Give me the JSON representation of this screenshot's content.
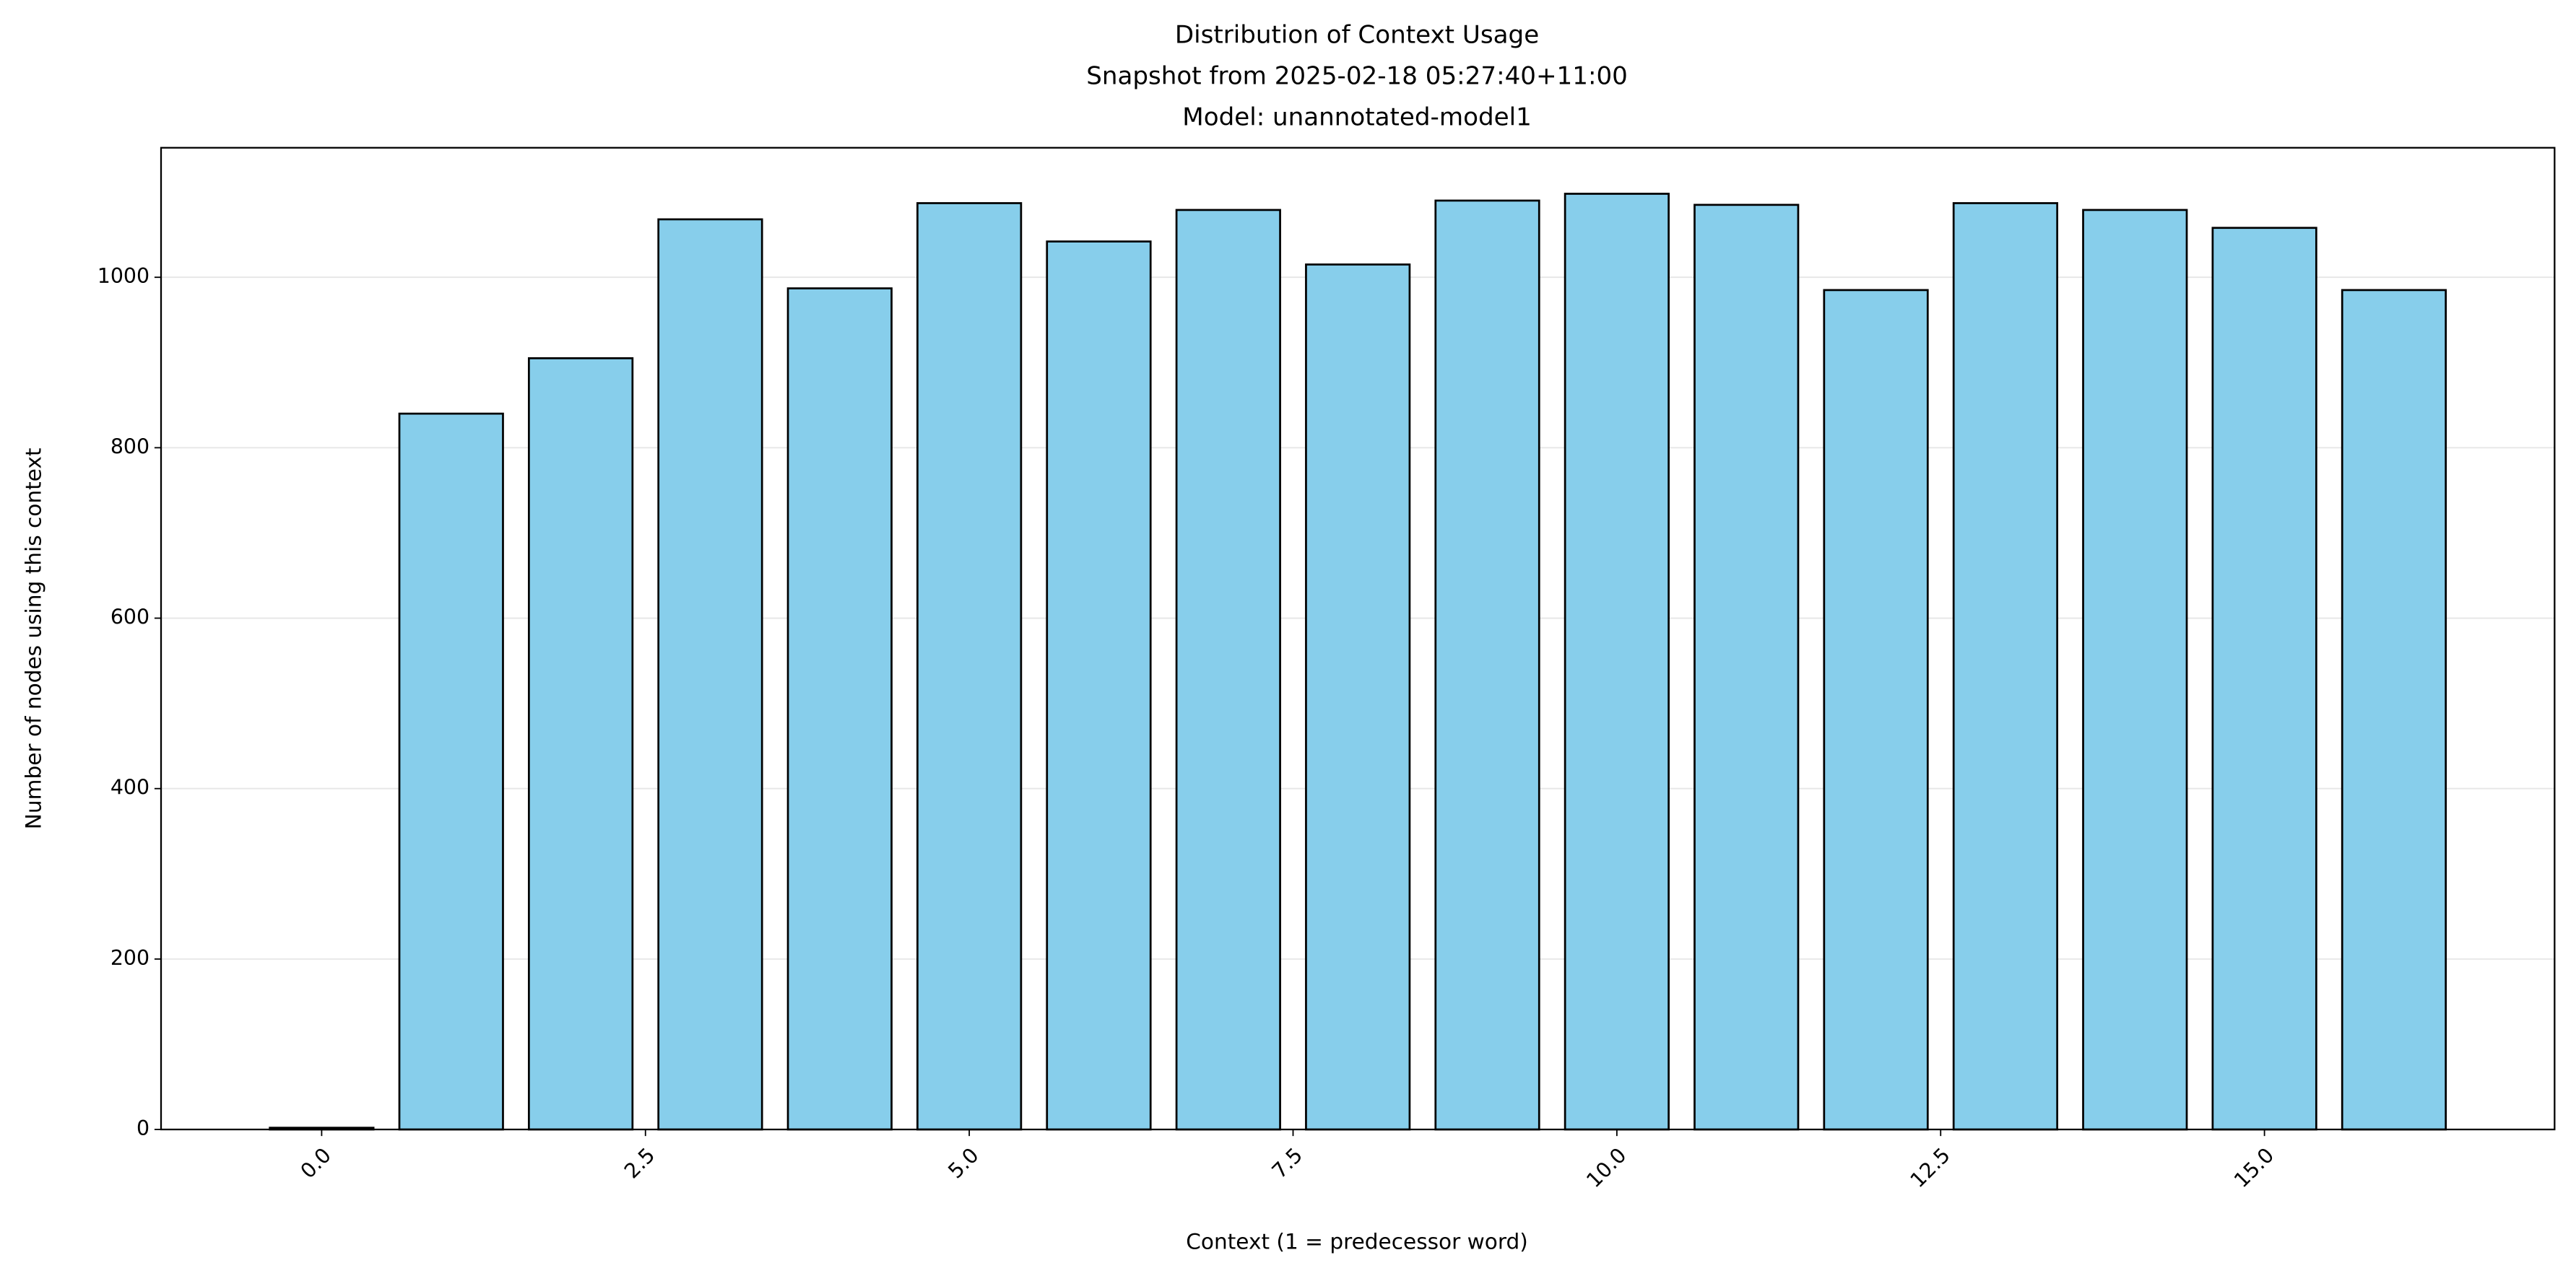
{
  "chart_data": {
    "type": "bar",
    "title": [
      "Distribution of Context Usage",
      "Snapshot from 2025-02-18 05:27:40+11:00",
      "Model: unannotated-model1"
    ],
    "xlabel": "Context (1 = predecessor word)",
    "ylabel": "Number of nodes using this context",
    "x": [
      0,
      1,
      2,
      3,
      4,
      5,
      6,
      7,
      8,
      9,
      10,
      11,
      12,
      13,
      14,
      15,
      16
    ],
    "values": [
      2,
      840,
      905,
      1068,
      987,
      1087,
      1042,
      1079,
      1015,
      1090,
      1098,
      1085,
      985,
      1087,
      1079,
      1058,
      985
    ],
    "color": "#87ceeb",
    "edgecolor": "#000000",
    "bar_width": 0.8,
    "xlim": [
      -1.24,
      17.24
    ],
    "xticks": [
      {
        "value": 0,
        "label": "0.0"
      },
      2.5,
      {
        "value": 5,
        "label": "5.0"
      },
      7.5,
      {
        "value": 10,
        "label": "10.0"
      },
      12.5,
      {
        "value": 15,
        "label": "15.0"
      }
    ],
    "ylim": [
      0,
      1152
    ],
    "yticks": [
      0,
      200,
      400,
      600,
      800,
      1000
    ],
    "grid": true
  }
}
